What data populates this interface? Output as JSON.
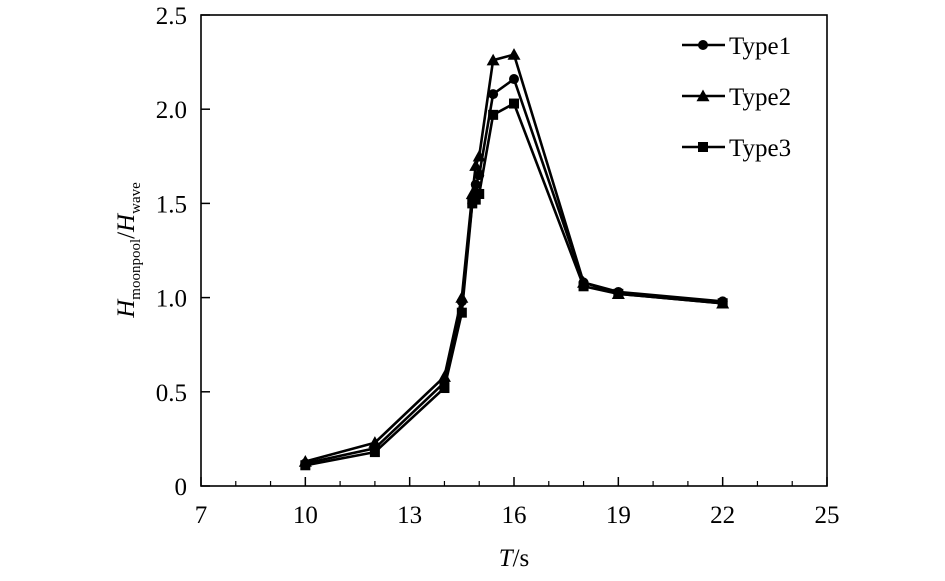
{
  "chart_data": {
    "type": "line",
    "title": "",
    "xlabel": {
      "var": "T",
      "unit": "/s"
    },
    "ylabel": {
      "num_var": "H",
      "num_sub": "moonpool",
      "sep": "/",
      "den_var": "H",
      "den_sub": "wave"
    },
    "xlim": [
      7,
      25
    ],
    "ylim": [
      0,
      2.5
    ],
    "xticks": [
      7,
      10,
      13,
      16,
      19,
      22,
      25
    ],
    "xminor": [
      8,
      9,
      11,
      12,
      14,
      15,
      17,
      18,
      20,
      21,
      23,
      24
    ],
    "xtick_labels": [
      "7",
      "10",
      "13",
      "16",
      "19",
      "22",
      "25"
    ],
    "yticks": [
      0,
      0.5,
      1.0,
      1.5,
      2.0,
      2.5
    ],
    "ytick_labels": [
      "0",
      "0.5",
      "1.0",
      "1.5",
      "2.0",
      "2.5"
    ],
    "grid": false,
    "legend_position": "top-right",
    "series": [
      {
        "name": "Type1",
        "marker": "circle",
        "color": "#000000",
        "x": [
          10,
          12,
          14,
          14.5,
          14.8,
          14.9,
          15,
          15.4,
          16,
          18,
          19,
          22
        ],
        "y": [
          0.12,
          0.2,
          0.55,
          0.98,
          1.5,
          1.6,
          1.65,
          2.08,
          2.16,
          1.08,
          1.03,
          0.98
        ]
      },
      {
        "name": "Type2",
        "marker": "triangle",
        "color": "#000000",
        "x": [
          10,
          12,
          14,
          14.5,
          14.8,
          14.9,
          15,
          15.4,
          16,
          18,
          19,
          22
        ],
        "y": [
          0.13,
          0.23,
          0.58,
          1.0,
          1.55,
          1.7,
          1.75,
          2.26,
          2.29,
          1.08,
          1.02,
          0.97
        ]
      },
      {
        "name": "Type3",
        "marker": "square",
        "color": "#000000",
        "x": [
          10,
          12,
          14,
          14.5,
          14.8,
          14.9,
          15,
          15.4,
          16,
          18,
          19,
          22
        ],
        "y": [
          0.11,
          0.18,
          0.52,
          0.92,
          1.5,
          1.52,
          1.55,
          1.97,
          2.03,
          1.06,
          1.02,
          0.97
        ]
      }
    ]
  }
}
